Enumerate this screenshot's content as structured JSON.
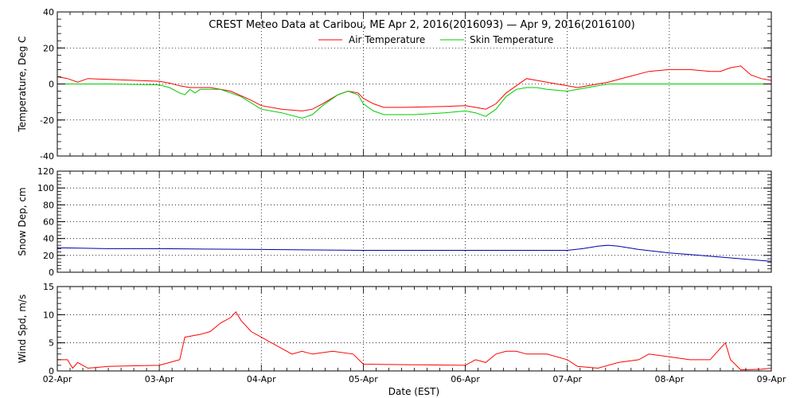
{
  "chart_data": {
    "type": "line",
    "title": "CREST Meteo Data at Caribou, ME   Apr  2, 2016(2016093) — Apr  9, 2016(2016100)",
    "xlabel": "Date (EST)",
    "x_ticks": [
      "02-Apr",
      "03-Apr",
      "04-Apr",
      "05-Apr",
      "06-Apr",
      "07-Apr",
      "08-Apr",
      "09-Apr"
    ],
    "x_range_days": [
      0,
      7
    ],
    "grid": true,
    "legend_position": "top-center",
    "panels": [
      {
        "ylabel": "Temperature, Deg C",
        "ylim": [
          -40,
          40
        ],
        "yticks": [
          -40,
          -20,
          0,
          20,
          40
        ],
        "series": [
          {
            "name": "Air Temperature",
            "color": "#ff0000",
            "points": [
              [
                0,
                4
              ],
              [
                0.1,
                3
              ],
              [
                0.2,
                1
              ],
              [
                0.3,
                3
              ],
              [
                0.5,
                2.5
              ],
              [
                1.0,
                1.5
              ],
              [
                1.1,
                0.5
              ],
              [
                1.2,
                -1
              ],
              [
                1.3,
                -2
              ],
              [
                1.5,
                -2
              ],
              [
                1.7,
                -4
              ],
              [
                1.9,
                -9
              ],
              [
                2.0,
                -12
              ],
              [
                2.2,
                -14
              ],
              [
                2.4,
                -15
              ],
              [
                2.5,
                -14
              ],
              [
                2.6,
                -11
              ],
              [
                2.75,
                -6
              ],
              [
                2.85,
                -4
              ],
              [
                2.95,
                -5
              ],
              [
                3.0,
                -8
              ],
              [
                3.1,
                -11
              ],
              [
                3.2,
                -13
              ],
              [
                3.4,
                -13
              ],
              [
                3.8,
                -12.5
              ],
              [
                4.0,
                -12
              ],
              [
                4.1,
                -13
              ],
              [
                4.2,
                -14
              ],
              [
                4.3,
                -11
              ],
              [
                4.4,
                -5
              ],
              [
                4.5,
                -1
              ],
              [
                4.6,
                3
              ],
              [
                4.7,
                2
              ],
              [
                4.8,
                1
              ],
              [
                5.0,
                -1
              ],
              [
                5.1,
                -2
              ],
              [
                5.2,
                -1
              ],
              [
                5.3,
                0
              ],
              [
                5.4,
                1
              ],
              [
                5.6,
                4
              ],
              [
                5.8,
                7
              ],
              [
                6.0,
                8
              ],
              [
                6.2,
                8
              ],
              [
                6.4,
                7
              ],
              [
                6.5,
                7
              ],
              [
                6.6,
                9
              ],
              [
                6.7,
                10
              ],
              [
                6.8,
                5
              ],
              [
                6.9,
                3
              ],
              [
                7.0,
                2
              ]
            ]
          },
          {
            "name": "Skin Temperature",
            "color": "#00cc00",
            "points": [
              [
                0,
                0
              ],
              [
                0.5,
                0
              ],
              [
                1.0,
                -0.5
              ],
              [
                1.1,
                -2
              ],
              [
                1.2,
                -5
              ],
              [
                1.25,
                -6
              ],
              [
                1.3,
                -3
              ],
              [
                1.35,
                -5
              ],
              [
                1.4,
                -3
              ],
              [
                1.6,
                -3
              ],
              [
                1.8,
                -7
              ],
              [
                2.0,
                -14
              ],
              [
                2.2,
                -16
              ],
              [
                2.4,
                -19
              ],
              [
                2.5,
                -17
              ],
              [
                2.6,
                -12
              ],
              [
                2.75,
                -6
              ],
              [
                2.85,
                -4
              ],
              [
                2.95,
                -6
              ],
              [
                3.0,
                -11
              ],
              [
                3.1,
                -15
              ],
              [
                3.2,
                -17
              ],
              [
                3.5,
                -17
              ],
              [
                3.8,
                -16
              ],
              [
                4.0,
                -15
              ],
              [
                4.1,
                -16
              ],
              [
                4.2,
                -18
              ],
              [
                4.3,
                -14
              ],
              [
                4.4,
                -7
              ],
              [
                4.5,
                -3
              ],
              [
                4.6,
                -2
              ],
              [
                4.7,
                -2
              ],
              [
                4.8,
                -3
              ],
              [
                5.0,
                -4
              ],
              [
                5.1,
                -3
              ],
              [
                5.2,
                -2
              ],
              [
                5.4,
                0
              ],
              [
                6.0,
                0
              ],
              [
                7.0,
                0
              ]
            ]
          }
        ]
      },
      {
        "ylabel": "Snow Dep, cm",
        "ylim": [
          0,
          120
        ],
        "yticks": [
          0,
          20,
          40,
          60,
          80,
          100,
          120
        ],
        "series": [
          {
            "name": "",
            "color": "#0000aa",
            "points": [
              [
                0,
                29
              ],
              [
                0.5,
                28
              ],
              [
                1.0,
                28
              ],
              [
                2.0,
                27
              ],
              [
                3.0,
                26
              ],
              [
                4.0,
                26
              ],
              [
                4.5,
                26
              ],
              [
                5.0,
                26
              ],
              [
                5.15,
                28
              ],
              [
                5.3,
                31
              ],
              [
                5.4,
                32
              ],
              [
                5.5,
                31
              ],
              [
                5.7,
                27
              ],
              [
                6.0,
                23
              ],
              [
                6.3,
                20
              ],
              [
                6.6,
                17
              ],
              [
                6.9,
                14
              ],
              [
                7.0,
                13
              ]
            ]
          }
        ]
      },
      {
        "ylabel": "Wind Spd, m/s",
        "ylim": [
          0,
          15
        ],
        "yticks": [
          0,
          5,
          10,
          15
        ],
        "series": [
          {
            "name": "",
            "color": "#ff0000",
            "points": [
              [
                0,
                2
              ],
              [
                0.1,
                2
              ],
              [
                0.15,
                0.5
              ],
              [
                0.2,
                1.5
              ],
              [
                0.3,
                0.5
              ],
              [
                0.5,
                0.8
              ],
              [
                1.0,
                1
              ],
              [
                1.1,
                1.5
              ],
              [
                1.2,
                2
              ],
              [
                1.25,
                6
              ],
              [
                1.4,
                6.5
              ],
              [
                1.5,
                7
              ],
              [
                1.6,
                8.5
              ],
              [
                1.7,
                9.5
              ],
              [
                1.75,
                10.5
              ],
              [
                1.8,
                9
              ],
              [
                1.9,
                7
              ],
              [
                2.0,
                6
              ],
              [
                2.1,
                5
              ],
              [
                2.2,
                4
              ],
              [
                2.3,
                3
              ],
              [
                2.4,
                3.5
              ],
              [
                2.5,
                3
              ],
              [
                2.7,
                3.5
              ],
              [
                2.9,
                3
              ],
              [
                3.0,
                1.2
              ],
              [
                3.5,
                1.1
              ],
              [
                4.0,
                1
              ],
              [
                4.1,
                2
              ],
              [
                4.2,
                1.5
              ],
              [
                4.3,
                3
              ],
              [
                4.4,
                3.5
              ],
              [
                4.5,
                3.5
              ],
              [
                4.6,
                3
              ],
              [
                4.8,
                3
              ],
              [
                5.0,
                2
              ],
              [
                5.1,
                0.8
              ],
              [
                5.3,
                0.5
              ],
              [
                5.5,
                1.5
              ],
              [
                5.7,
                2
              ],
              [
                5.8,
                3
              ],
              [
                6.0,
                2.5
              ],
              [
                6.2,
                2
              ],
              [
                6.4,
                2
              ],
              [
                6.5,
                4
              ],
              [
                6.55,
                5
              ],
              [
                6.6,
                2
              ],
              [
                6.7,
                0.2
              ],
              [
                6.9,
                0.3
              ],
              [
                7.0,
                0.5
              ]
            ]
          }
        ]
      }
    ]
  }
}
